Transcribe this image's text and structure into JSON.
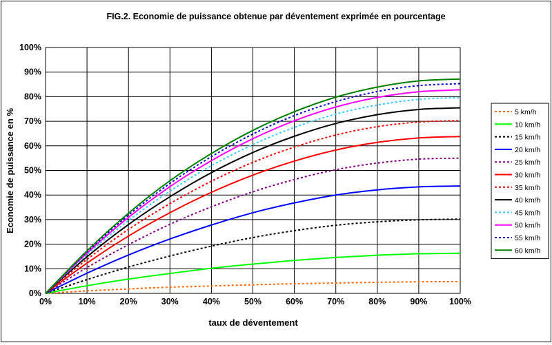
{
  "chart_data": {
    "type": "line",
    "title": "FIG.2. Economie de puissance obtenue par déventement exprimée en pourcentage",
    "xlabel": "taux de déventement",
    "ylabel": "Economie de puissance en %",
    "xlim": [
      0,
      100
    ],
    "ylim": [
      0,
      100
    ],
    "x_ticks": [
      "0%",
      "10%",
      "20%",
      "30%",
      "40%",
      "50%",
      "60%",
      "70%",
      "80%",
      "90%",
      "100%"
    ],
    "y_ticks": [
      "0%",
      "10%",
      "20%",
      "30%",
      "40%",
      "50%",
      "60%",
      "70%",
      "80%",
      "90%",
      "100%"
    ],
    "grid": true,
    "legend_position": "right",
    "x": [
      0,
      10,
      20,
      30,
      40,
      50,
      60,
      70,
      80,
      90,
      100
    ],
    "series": [
      {
        "name": "5 km/h",
        "color": "#ff6600",
        "dash": "dotted",
        "values": [
          0,
          1.0,
          1.8,
          2.5,
          3.0,
          3.5,
          3.9,
          4.2,
          4.5,
          4.7,
          4.8
        ]
      },
      {
        "name": "10 km/h",
        "color": "#00ff00",
        "dash": "solid",
        "values": [
          0,
          3.1,
          5.8,
          8.1,
          10.2,
          11.9,
          13.4,
          14.6,
          15.5,
          16.1,
          16.3
        ]
      },
      {
        "name": "15 km/h",
        "color": "#000000",
        "dash": "dotted",
        "values": [
          0,
          5.6,
          10.7,
          15.2,
          19.2,
          22.7,
          25.5,
          27.7,
          29.1,
          29.9,
          30.2
        ]
      },
      {
        "name": "20 km/h",
        "color": "#0000ff",
        "dash": "solid",
        "values": [
          0,
          8.2,
          15.6,
          22.1,
          27.8,
          32.8,
          36.8,
          40.0,
          42.1,
          43.3,
          43.7
        ]
      },
      {
        "name": "25 km/h",
        "color": "#800080",
        "dash": "dotted",
        "values": [
          0,
          10.5,
          19.8,
          28.1,
          35.2,
          41.3,
          46.3,
          50.3,
          53.0,
          54.6,
          55.0
        ]
      },
      {
        "name": "30 km/h",
        "color": "#ff0000",
        "dash": "solid",
        "values": [
          0,
          12.3,
          23.3,
          32.8,
          41.1,
          48.1,
          53.8,
          58.3,
          61.4,
          63.2,
          63.8
        ]
      },
      {
        "name": "35 km/h",
        "color": "#ff0000",
        "dash": "dotted",
        "values": [
          0,
          13.8,
          26.0,
          36.5,
          45.6,
          53.3,
          59.5,
          64.4,
          67.8,
          69.7,
          70.3
        ]
      },
      {
        "name": "40 km/h",
        "color": "#000000",
        "dash": "solid",
        "values": [
          0,
          14.9,
          28.0,
          39.3,
          49.1,
          57.3,
          63.9,
          69.1,
          72.7,
          74.8,
          75.5
        ]
      },
      {
        "name": "45 km/h",
        "color": "#33ccff",
        "dash": "dotted",
        "values": [
          0,
          15.8,
          29.6,
          41.6,
          51.9,
          60.5,
          67.5,
          72.9,
          76.6,
          78.9,
          79.6
        ]
      },
      {
        "name": "50 km/h",
        "color": "#ff00ff",
        "dash": "solid",
        "values": [
          0,
          16.4,
          30.9,
          43.4,
          54.0,
          62.9,
          70.2,
          75.8,
          79.7,
          82.0,
          82.8
        ]
      },
      {
        "name": "55 km/h",
        "color": "#0000cc",
        "dash": "dotted",
        "values": [
          0,
          16.9,
          31.8,
          44.7,
          55.6,
          64.8,
          72.3,
          78.0,
          82.1,
          84.5,
          85.3
        ]
      },
      {
        "name": "60 km/h",
        "color": "#008000",
        "dash": "solid",
        "values": [
          0,
          17.3,
          32.6,
          45.8,
          56.9,
          66.3,
          73.9,
          79.8,
          83.9,
          86.4,
          87.2
        ]
      }
    ]
  }
}
